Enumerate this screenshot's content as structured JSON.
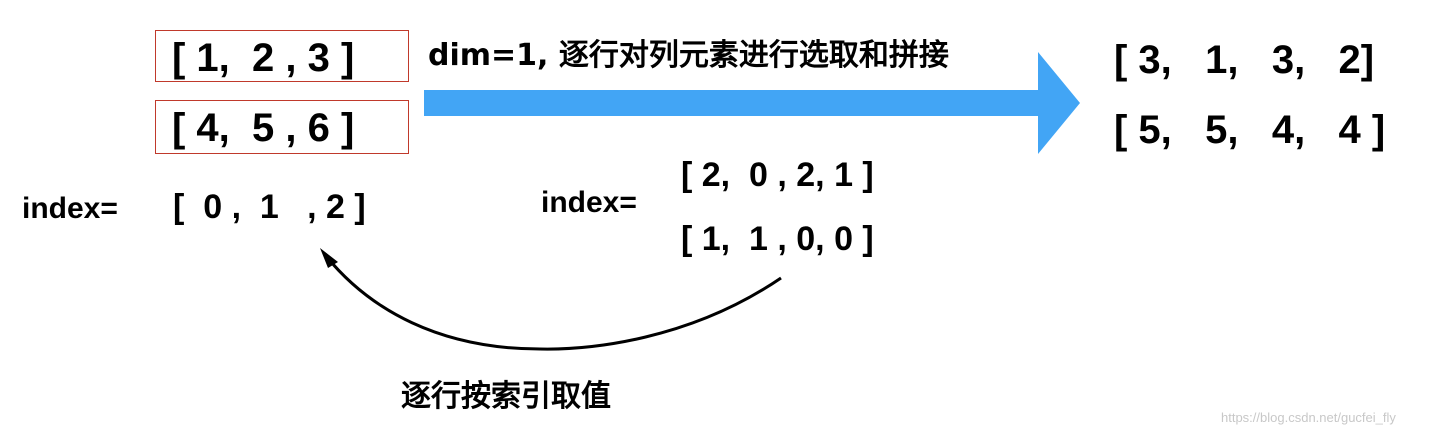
{
  "input_tensor": {
    "row_1": "[ 1,  2 , 3 ]",
    "row_2": "[ 4,  5 , 6 ]"
  },
  "top_arrow": {
    "caption": "dim=1, 逐行对列元素进行选取和拼接",
    "color": "#42a5f5"
  },
  "output_tensor": {
    "row_1": "[ 3,   1,   3,   2]",
    "row_2": "[ 5,   5,   4,   4 ]"
  },
  "left_index": {
    "label": "index=",
    "values": "[  0 ,  1   , 2 ]"
  },
  "right_index": {
    "label": "index=",
    "row_1": "[ 2,  0 , 2, 1 ]",
    "row_2": "[ 1,  1 , 0, 0 ]"
  },
  "bottom_caption": "逐行按索引取值",
  "watermark": "https://blog.csdn.net/gucfei_fly",
  "colors": {
    "box_border": "#c0392b",
    "curved_arrow": "#000000"
  }
}
